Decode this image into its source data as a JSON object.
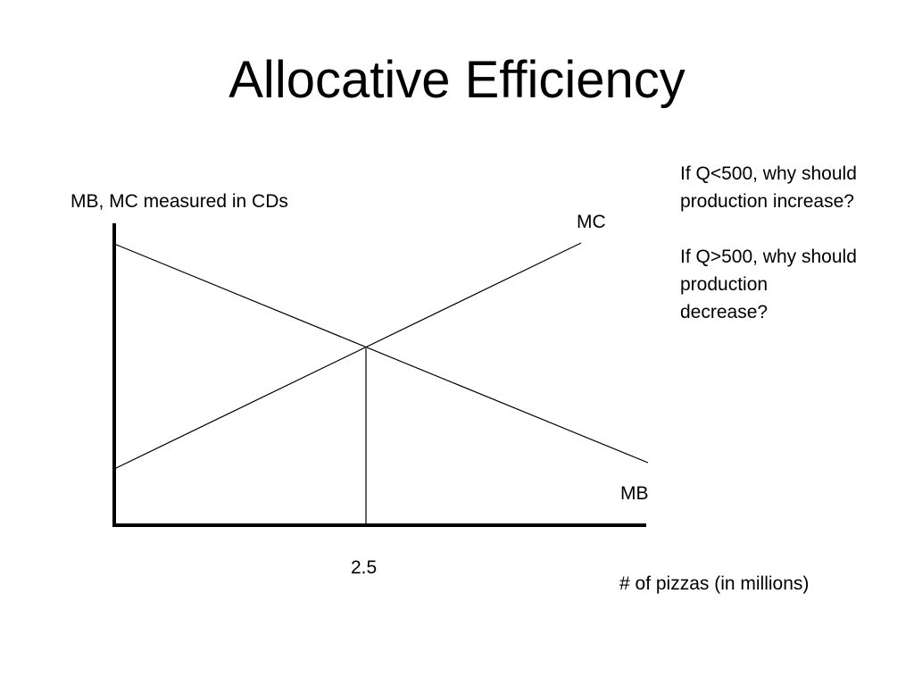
{
  "slide": {
    "title": "Allocative Efficiency"
  },
  "diagram": {
    "y_axis_label": "MB, MC measured in CDs",
    "x_axis_label": "# of pizzas (in millions)",
    "curves": [
      {
        "name": "MC",
        "slope": "upward"
      },
      {
        "name": "MB",
        "slope": "downward"
      }
    ],
    "x_ticks": [
      "2.5"
    ]
  },
  "questions": [
    "If Q<500, why should production increase?",
    "If Q>500, why should production decrease?"
  ]
}
